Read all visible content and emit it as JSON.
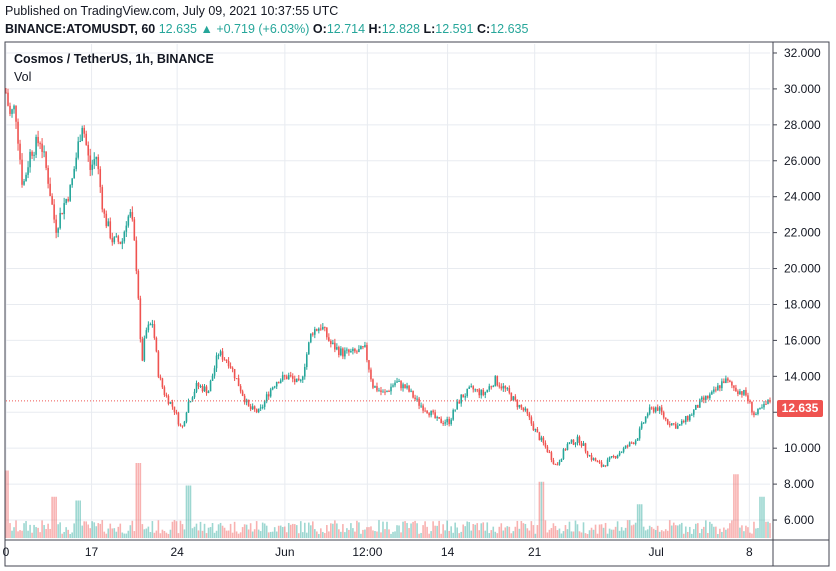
{
  "header": {
    "published": "Published on TradingView.com, July 09, 2021 10:37:55 UTC",
    "symbol": "BINANCE:ATOMUSDT, 60",
    "last": "12.635",
    "change": "+0.719 (+6.03%)",
    "o_label": "O:",
    "o_value": "12.714",
    "h_label": "H:",
    "h_value": "12.828",
    "l_label": "L:",
    "l_value": "12.591",
    "c_label": "C:",
    "c_value": "12.635",
    "up_arrow": "▲"
  },
  "legend": {
    "title": "Cosmos / TetherUS, 1h, BINANCE",
    "vol": "Vol"
  },
  "colors": {
    "up": "#26a69a",
    "down": "#ef5350",
    "grid": "#e8ebf0",
    "border": "#434651"
  },
  "chart_data": {
    "type": "candlestick",
    "title": "Cosmos / TetherUS, 1h, BINANCE",
    "symbol": "BINANCE:ATOMUSDT",
    "interval": "1h",
    "ylim": [
      5.0,
      32.5
    ],
    "y_ticks": [
      6,
      8,
      10,
      12,
      14,
      16,
      18,
      20,
      22,
      24,
      26,
      28,
      30,
      32
    ],
    "y_tick_labels": [
      "6.000",
      "8.000",
      "10.000",
      "12.000",
      "14.000",
      "16.000",
      "18.000",
      "20.000",
      "22.000",
      "24.000",
      "26.000",
      "28.000",
      "30.000",
      "32.000"
    ],
    "x_tick_labels": [
      "0",
      "17",
      "24",
      "Jun",
      "12:00",
      "14",
      "21",
      "Jul",
      "8"
    ],
    "x_tick_index": [
      0,
      0.112,
      0.224,
      0.365,
      0.473,
      0.578,
      0.692,
      0.851,
      0.973
    ],
    "last_price": 12.635,
    "last_price_label": "12.635",
    "close_path": [
      [
        0.0,
        29.8
      ],
      [
        0.005,
        28.5
      ],
      [
        0.012,
        29.0
      ],
      [
        0.022,
        24.5
      ],
      [
        0.032,
        26.5
      ],
      [
        0.045,
        27.2
      ],
      [
        0.055,
        25.0
      ],
      [
        0.065,
        22.2
      ],
      [
        0.075,
        23.5
      ],
      [
        0.085,
        24.5
      ],
      [
        0.095,
        27.0
      ],
      [
        0.1,
        28.2
      ],
      [
        0.11,
        25.5
      ],
      [
        0.118,
        26.3
      ],
      [
        0.128,
        23.0
      ],
      [
        0.14,
        21.5
      ],
      [
        0.152,
        21.5
      ],
      [
        0.158,
        22.8
      ],
      [
        0.164,
        23.0
      ],
      [
        0.17,
        20.5
      ],
      [
        0.174,
        18.0
      ],
      [
        0.177,
        14.5
      ],
      [
        0.183,
        16.5
      ],
      [
        0.192,
        17.0
      ],
      [
        0.2,
        14.0
      ],
      [
        0.208,
        13.0
      ],
      [
        0.22,
        12.2
      ],
      [
        0.23,
        11.0
      ],
      [
        0.238,
        12.5
      ],
      [
        0.25,
        13.5
      ],
      [
        0.265,
        13.2
      ],
      [
        0.278,
        15.3
      ],
      [
        0.292,
        14.8
      ],
      [
        0.305,
        13.5
      ],
      [
        0.318,
        12.2
      ],
      [
        0.332,
        12.0
      ],
      [
        0.345,
        13.2
      ],
      [
        0.355,
        13.8
      ],
      [
        0.37,
        14.0
      ],
      [
        0.385,
        13.5
      ],
      [
        0.4,
        16.5
      ],
      [
        0.413,
        16.8
      ],
      [
        0.425,
        15.8
      ],
      [
        0.44,
        15.3
      ],
      [
        0.455,
        15.3
      ],
      [
        0.47,
        15.5
      ],
      [
        0.48,
        13.5
      ],
      [
        0.495,
        13.0
      ],
      [
        0.51,
        13.7
      ],
      [
        0.525,
        13.3
      ],
      [
        0.54,
        12.5
      ],
      [
        0.555,
        12.0
      ],
      [
        0.565,
        11.5
      ],
      [
        0.58,
        11.5
      ],
      [
        0.595,
        12.8
      ],
      [
        0.61,
        13.3
      ],
      [
        0.625,
        13.0
      ],
      [
        0.64,
        13.8
      ],
      [
        0.655,
        13.2
      ],
      [
        0.668,
        12.5
      ],
      [
        0.68,
        12.0
      ],
      [
        0.695,
        10.8
      ],
      [
        0.71,
        9.8
      ],
      [
        0.72,
        9.0
      ],
      [
        0.735,
        10.2
      ],
      [
        0.75,
        10.5
      ],
      [
        0.765,
        9.5
      ],
      [
        0.78,
        9.0
      ],
      [
        0.795,
        9.5
      ],
      [
        0.81,
        10.0
      ],
      [
        0.825,
        10.5
      ],
      [
        0.84,
        12.0
      ],
      [
        0.852,
        12.3
      ],
      [
        0.865,
        11.5
      ],
      [
        0.88,
        11.2
      ],
      [
        0.895,
        11.8
      ],
      [
        0.91,
        12.6
      ],
      [
        0.925,
        13.0
      ],
      [
        0.94,
        13.8
      ],
      [
        0.955,
        13.3
      ],
      [
        0.968,
        13.0
      ],
      [
        0.98,
        11.8
      ],
      [
        0.992,
        12.3
      ],
      [
        1.0,
        12.635
      ]
    ],
    "volume_spikes": [
      [
        0.0,
        0.9
      ],
      [
        0.064,
        0.55
      ],
      [
        0.095,
        0.5
      ],
      [
        0.172,
        1.0
      ],
      [
        0.24,
        0.7
      ],
      [
        0.7,
        0.75
      ],
      [
        0.83,
        0.45
      ],
      [
        0.955,
        0.85
      ],
      [
        0.99,
        0.55
      ]
    ]
  }
}
